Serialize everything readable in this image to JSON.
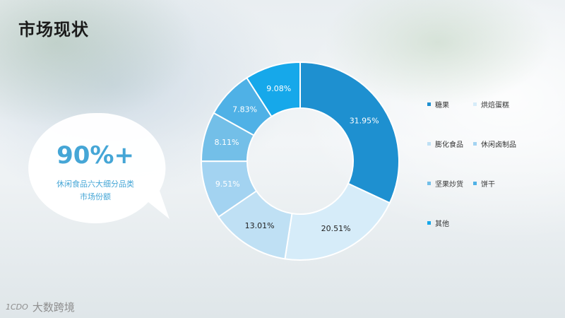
{
  "title": "市场现状",
  "stat": {
    "value": "90%+",
    "description_line1": "休闲食品六大细分品类",
    "description_line2": "市场份额"
  },
  "colors": {
    "accent": "#45a6d6"
  },
  "chart_data": {
    "type": "pie",
    "donut": true,
    "slices": [
      {
        "name": "糖果",
        "value": 31.95,
        "label": "31.95%",
        "color": "#1e90d0"
      },
      {
        "name": "烘焙蛋糕",
        "value": 20.51,
        "label": "20.51%",
        "color": "#d6ecf9"
      },
      {
        "name": "膨化食品",
        "value": 13.01,
        "label": "13.01%",
        "color": "#bfe0f4"
      },
      {
        "name": "休闲卤制品",
        "value": 9.51,
        "label": "9.51%",
        "color": "#a3d3f1"
      },
      {
        "name": "坚果炒货",
        "value": 8.11,
        "label": "8.11%",
        "color": "#73bfe8"
      },
      {
        "name": "饼干",
        "value": 7.83,
        "label": "7.83%",
        "color": "#4fb1e6"
      },
      {
        "name": "其他",
        "value": 9.08,
        "label": "9.08%",
        "color": "#16a8ea"
      }
    ],
    "legend_position": "right"
  },
  "logo": {
    "mark": "1CDO",
    "text": "大数跨境"
  }
}
